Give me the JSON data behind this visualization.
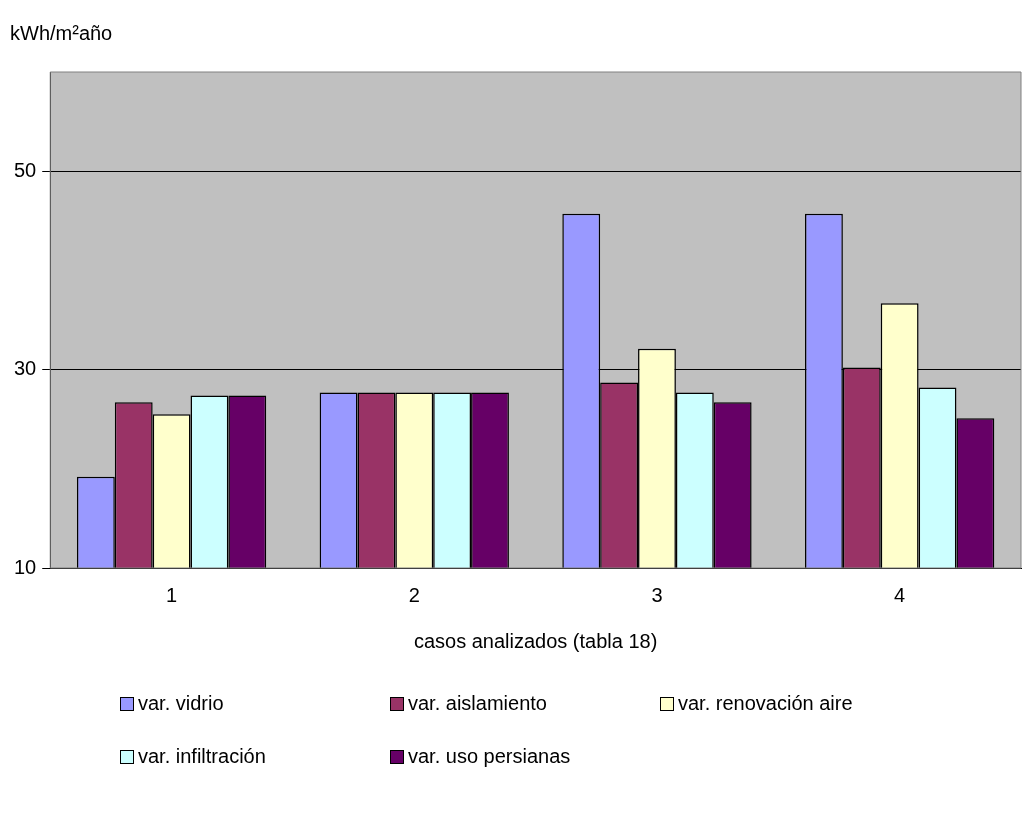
{
  "chart_data": {
    "type": "bar",
    "ylabel": "kWh/m²año",
    "xlabel": "casos analizados (tabla 18)",
    "categories": [
      "1",
      "2",
      "3",
      "4"
    ],
    "ylim": [
      10,
      60
    ],
    "yticks": [
      10,
      30,
      50
    ],
    "grid": "y",
    "legend": "bottom",
    "series": [
      {
        "name": "var. vidrio",
        "color": "#9999ff",
        "values": [
          19.2,
          27.7,
          45.7,
          45.7
        ]
      },
      {
        "name": "var. aislamiento",
        "color": "#993366",
        "values": [
          26.7,
          27.7,
          28.7,
          30.2
        ]
      },
      {
        "name": "var. renovación aire",
        "color": "#ffffcc",
        "values": [
          25.5,
          27.7,
          32.1,
          36.7
        ]
      },
      {
        "name": "var. infiltración",
        "color": "#ccffff",
        "values": [
          27.4,
          27.7,
          27.7,
          28.2
        ]
      },
      {
        "name": "var. uso persianas",
        "color": "#660066",
        "values": [
          27.4,
          27.7,
          26.7,
          25.1
        ]
      }
    ]
  }
}
